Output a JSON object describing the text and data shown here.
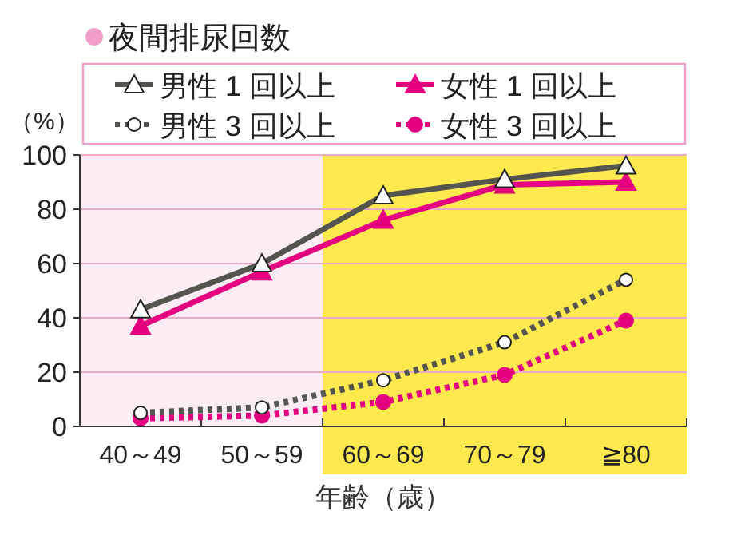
{
  "chart_data": {
    "type": "line",
    "title": "夜間排尿回数",
    "xlabel": "年齢（歳）",
    "ylabel": "（%）",
    "categories": [
      "40～49",
      "50～59",
      "60～69",
      "70～79",
      "≧80"
    ],
    "series": [
      {
        "name": "男性 1 回以上",
        "color": "#555550",
        "marker": "triangle",
        "line_style": "solid",
        "values": [
          43,
          60,
          85,
          91,
          96
        ]
      },
      {
        "name": "女性 1 回以上",
        "color": "#e4007f",
        "marker": "triangle",
        "line_style": "solid",
        "values": [
          37,
          57,
          76,
          89,
          90
        ]
      },
      {
        "name": "男性 3 回以上",
        "color": "#555550",
        "marker": "circle",
        "line_style": "dotted",
        "values": [
          5,
          7,
          17,
          31,
          54
        ]
      },
      {
        "name": "女性 3 回以上",
        "color": "#e4007f",
        "marker": "circle",
        "line_style": "dotted",
        "values": [
          3,
          4,
          9,
          19,
          39
        ]
      }
    ],
    "ylim": [
      0,
      100
    ],
    "yticks": [
      0,
      20,
      40,
      60,
      80,
      100
    ],
    "grid": "y",
    "legend": "top",
    "bands": [
      {
        "axis": "x",
        "from": "60～69",
        "to": "≧80",
        "color": "#ffe94f"
      }
    ]
  }
}
